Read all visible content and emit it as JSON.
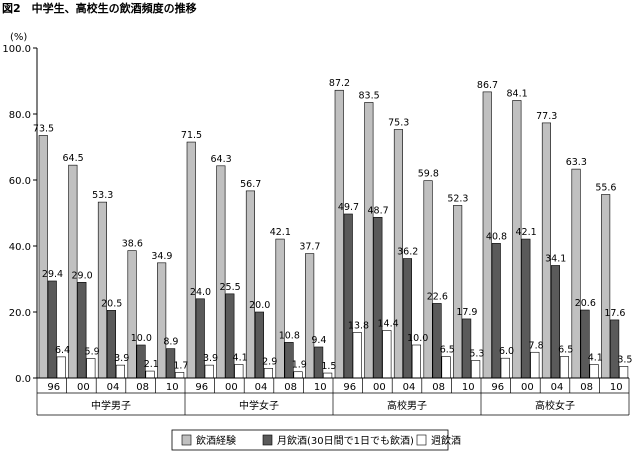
{
  "chart_data": {
    "type": "bar",
    "title": "図2　中学生、高校生の飲酒頻度の推移",
    "yunit": "(%)",
    "ylim": [
      0,
      100
    ],
    "yticks": [
      "0.0",
      "20.0",
      "40.0",
      "60.0",
      "80.0",
      "100.0"
    ],
    "grid": false,
    "legend_position": "bottom",
    "groups": [
      {
        "name": "中学男子",
        "years": [
          "96",
          "00",
          "04",
          "08",
          "10"
        ]
      },
      {
        "name": "中学女子",
        "years": [
          "96",
          "00",
          "04",
          "08",
          "10"
        ]
      },
      {
        "name": "高校男子",
        "years": [
          "96",
          "00",
          "04",
          "08",
          "10"
        ]
      },
      {
        "name": "高校女子",
        "years": [
          "96",
          "00",
          "04",
          "08",
          "10"
        ]
      }
    ],
    "series": [
      {
        "name": "飲酒経験",
        "color": "#c0c0c0",
        "values": [
          73.5,
          64.5,
          53.3,
          38.6,
          34.9,
          71.5,
          64.3,
          56.7,
          42.1,
          37.7,
          87.2,
          83.5,
          75.3,
          59.8,
          52.3,
          86.7,
          84.1,
          77.3,
          63.3,
          55.6
        ],
        "labels": [
          "73.5",
          "64.5",
          "53.3",
          "38.6",
          "34.9",
          "71.5",
          "64.3",
          "56.7",
          "42.1",
          "37.7",
          "87.2",
          "83.5",
          "75.3",
          "59.8",
          "52.3",
          "86.7",
          "84.1",
          "77.3",
          "63.3",
          "55.6"
        ]
      },
      {
        "name": "月飲酒(30日間で1日でも飲酒)",
        "color": "#5a5a5a",
        "values": [
          29.4,
          29.0,
          20.5,
          10.0,
          8.9,
          24.0,
          25.5,
          20.0,
          10.8,
          9.4,
          49.7,
          48.7,
          36.2,
          22.6,
          17.9,
          40.8,
          42.1,
          34.1,
          20.6,
          17.6
        ],
        "labels": [
          "29.4",
          "29.0",
          "20.5",
          "10.0",
          "8.9",
          "24.0",
          "25.5",
          "20.0",
          "10.8",
          "9.4",
          "49.7",
          "48.7",
          "36.2",
          "22.6",
          "17.9",
          "40.8",
          "42.1",
          "34.1",
          "20.6",
          "17.6"
        ]
      },
      {
        "name": "週飲酒",
        "color": "#ffffff",
        "values": [
          6.4,
          5.9,
          3.9,
          2.1,
          1.7,
          3.9,
          4.1,
          2.9,
          1.9,
          1.5,
          13.8,
          14.4,
          10.0,
          6.5,
          5.3,
          6.0,
          7.8,
          6.5,
          4.1,
          3.5
        ],
        "labels": [
          "6.4",
          "5.9",
          "3.9",
          "2.1",
          "1.7",
          "3.9",
          "4.1",
          "2.9",
          "1.9",
          "1.5",
          "13.8",
          "14.4",
          "10.0",
          "6.5",
          "5.3",
          "6.0",
          "7.8",
          "6.5",
          "4.1",
          "3.5"
        ]
      }
    ]
  }
}
